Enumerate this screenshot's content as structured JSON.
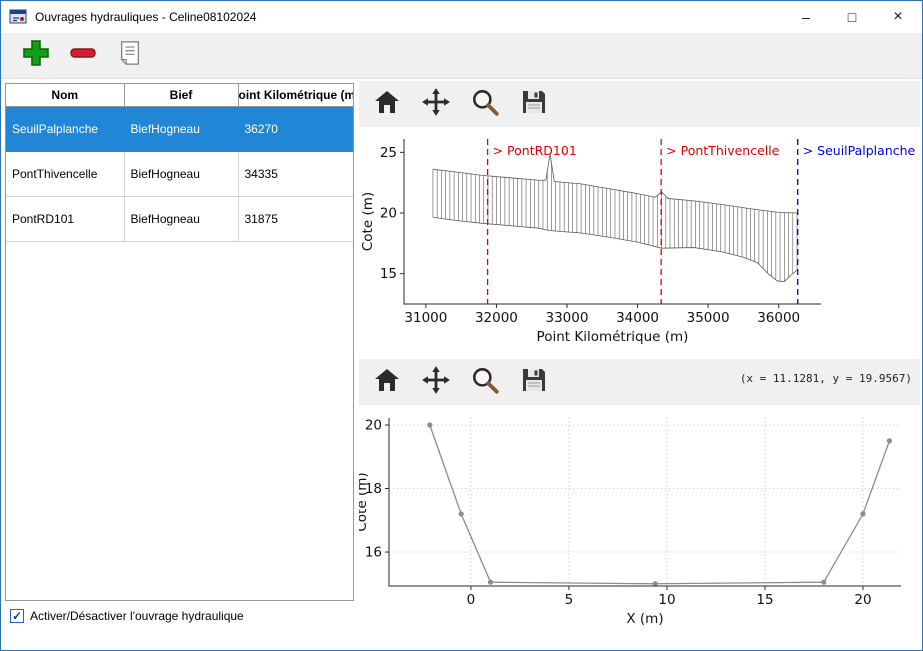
{
  "window": {
    "title": "Ouvrages hydrauliques - Celine08102024",
    "controls": {
      "minimize": "–",
      "maximize": "□",
      "close": "×"
    }
  },
  "toolbar": {
    "icons": [
      "add",
      "remove",
      "notes"
    ]
  },
  "table": {
    "columns": [
      "Nom",
      "Bief",
      "Point Kilométrique (m)"
    ],
    "rows": [
      {
        "cells": [
          "SeuilPalplanche",
          "BiefHogneau",
          "36270"
        ],
        "selected": true
      },
      {
        "cells": [
          "PontThivencelle",
          "BiefHogneau",
          "34335"
        ],
        "selected": false
      },
      {
        "cells": [
          "PontRD101",
          "BiefHogneau",
          "31875"
        ],
        "selected": false
      }
    ],
    "selection_color": "#2186d6"
  },
  "checkbox": {
    "label": "Activer/Désactiver l'ouvrage hydraulique",
    "mark": "✓",
    "checked": true
  },
  "mpl_toolbar": {
    "icons": [
      "home",
      "pan",
      "zoom",
      "save"
    ]
  },
  "status": {
    "coords": "(x = 11.1281,  y = 19.9567)"
  },
  "chart_data": [
    {
      "type": "line",
      "title": "",
      "xlabel": "Point Kilométrique (m)",
      "ylabel": "Cote (m)",
      "xlim": [
        30690,
        36600
      ],
      "ylim": [
        12.5,
        26.1
      ],
      "xticks": [
        31000,
        32000,
        33000,
        34000,
        35000,
        36000
      ],
      "yticks": [
        15,
        20,
        25
      ],
      "grid": false,
      "legend": "none",
      "hatch": {
        "start": 31100,
        "end": 36260,
        "step": 60
      },
      "profile_color": "#5a5a5a",
      "top_profile": [
        [
          31100,
          23.6
        ],
        [
          31400,
          23.4
        ],
        [
          31800,
          23.1
        ],
        [
          32200,
          22.9
        ],
        [
          32600,
          22.7
        ],
        [
          32700,
          22.7
        ],
        [
          32760,
          24.85
        ],
        [
          32820,
          22.6
        ],
        [
          33200,
          22.4
        ],
        [
          33600,
          22.0
        ],
        [
          34000,
          21.6
        ],
        [
          34250,
          21.3
        ],
        [
          34340,
          21.75
        ],
        [
          34430,
          21.2
        ],
        [
          34800,
          21.0
        ],
        [
          35200,
          20.7
        ],
        [
          35600,
          20.35
        ],
        [
          36000,
          20.05
        ],
        [
          36260,
          20.0
        ]
      ],
      "bottom_profile": [
        [
          31100,
          19.65
        ],
        [
          31400,
          19.4
        ],
        [
          31800,
          19.15
        ],
        [
          32200,
          18.95
        ],
        [
          32600,
          18.75
        ],
        [
          32760,
          18.55
        ],
        [
          33200,
          18.35
        ],
        [
          33600,
          18.0
        ],
        [
          34000,
          17.6
        ],
        [
          34340,
          17.1
        ],
        [
          34800,
          17.15
        ],
        [
          35200,
          16.8
        ],
        [
          35500,
          16.35
        ],
        [
          35700,
          15.9
        ],
        [
          35850,
          15.0
        ],
        [
          35980,
          14.4
        ],
        [
          36080,
          14.35
        ],
        [
          36180,
          14.9
        ],
        [
          36260,
          15.3
        ]
      ],
      "markers": [
        {
          "x": 31875,
          "label": "> PontRD101",
          "color": "#e00000"
        },
        {
          "x": 34335,
          "label": "> PontThivencelle",
          "color": "#e00000"
        },
        {
          "x": 36270,
          "label": "> SeuilPalplanche",
          "color": "#0000dd"
        }
      ]
    },
    {
      "type": "line",
      "title": "",
      "xlabel": "X (m)",
      "ylabel": "Cote (m)",
      "xlim": [
        -4.18,
        21.94
      ],
      "ylim": [
        14.93,
        20.22
      ],
      "xticks": [
        0,
        5,
        10,
        15,
        20
      ],
      "yticks": [
        16,
        18,
        20
      ],
      "grid": true,
      "line_color": "#8c8c8c",
      "points": [
        [
          -2.1,
          20.0
        ],
        [
          -0.5,
          17.2
        ],
        [
          1.0,
          15.05
        ],
        [
          9.4,
          15.0
        ],
        [
          18.0,
          15.05
        ],
        [
          20.0,
          17.2
        ],
        [
          21.35,
          19.5
        ]
      ]
    }
  ]
}
